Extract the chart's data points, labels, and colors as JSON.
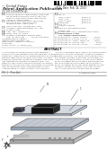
{
  "background_color": "#ffffff",
  "barcode_color": "#111111",
  "text_color": "#555555",
  "dark_text_color": "#222222",
  "separator_color": "#aaaaaa",
  "diagram_panel_top_color": "#d8d8d8",
  "diagram_panel_mid_color": "#c8cdd5",
  "diagram_panel_bot_color": "#d0d0d0",
  "diagram_dark_strip": "#2a2a2a",
  "diagram_small_element": "#555566",
  "diagram_edge_color": "#666666"
}
